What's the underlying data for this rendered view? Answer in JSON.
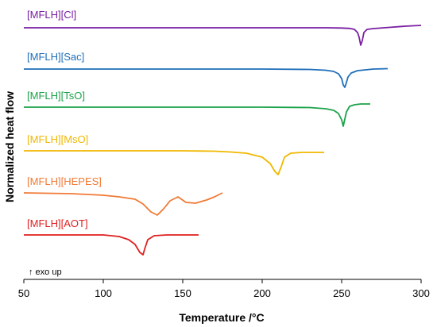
{
  "chart_data": {
    "type": "line",
    "xlabel": "Temperature /°C",
    "ylabel": "Normalized heat flow",
    "annotation": "↑ exo up",
    "xlim": [
      50,
      300
    ],
    "xticks": [
      50,
      100,
      150,
      200,
      250,
      300
    ],
    "grid": false,
    "legend": "inline labels above each curve",
    "series": [
      {
        "name": "[MFLH][Cl]",
        "color": "#7a1fa2",
        "x": [
          50,
          200,
          240,
          250,
          255,
          258,
          260,
          261,
          262,
          263,
          264,
          266,
          270,
          280,
          290,
          300
        ],
        "y": [
          0,
          0,
          0,
          -0.3,
          -0.8,
          -2,
          -6,
          -12,
          -22,
          -16,
          -6,
          -2,
          -1,
          0.5,
          2,
          3
        ]
      },
      {
        "name": "[MFLH][Sac]",
        "color": "#1f6fb8",
        "x": [
          50,
          200,
          230,
          240,
          245,
          248,
          250,
          251,
          252,
          253,
          254,
          256,
          260,
          270,
          279
        ],
        "y": [
          0,
          0,
          -0.5,
          -1.5,
          -3,
          -6,
          -12,
          -20,
          -23,
          -17,
          -10,
          -5,
          -2,
          0,
          0.5
        ]
      },
      {
        "name": "[MFLH][TsO]",
        "color": "#1ba34a",
        "x": [
          50,
          200,
          230,
          240,
          245,
          248,
          250,
          251,
          252,
          253,
          255,
          258,
          262,
          268
        ],
        "y": [
          0,
          0,
          -0.5,
          -2,
          -4,
          -8,
          -16,
          -24,
          -15,
          -6,
          1,
          3,
          4,
          4
        ]
      },
      {
        "name": "[MFLH][MsO]",
        "color": "#f0b800",
        "x": [
          50,
          150,
          170,
          180,
          190,
          200,
          205,
          208,
          210,
          212,
          214,
          218,
          225,
          239
        ],
        "y": [
          0,
          0,
          -0.5,
          -1.5,
          -3,
          -8,
          -16,
          -26,
          -30,
          -20,
          -8,
          -3,
          -2,
          -2
        ]
      },
      {
        "name": "[MFLH][HEPES]",
        "color": "#f07a35",
        "x": [
          50,
          80,
          100,
          110,
          120,
          125,
          130,
          134,
          138,
          142,
          147,
          152,
          158,
          165,
          170,
          175
        ],
        "y": [
          0,
          -1,
          -3,
          -5,
          -8,
          -14,
          -24,
          -28,
          -20,
          -10,
          -5,
          -12,
          -13,
          -9,
          -5,
          0
        ]
      },
      {
        "name": "[MFLH][AOT]",
        "color": "#e01f1f",
        "x": [
          50,
          100,
          110,
          116,
          120,
          123,
          125,
          126,
          128,
          132,
          140,
          160
        ],
        "y": [
          0,
          0,
          -2,
          -6,
          -12,
          -22,
          -25,
          -18,
          -6,
          -1,
          0,
          0
        ]
      }
    ]
  }
}
